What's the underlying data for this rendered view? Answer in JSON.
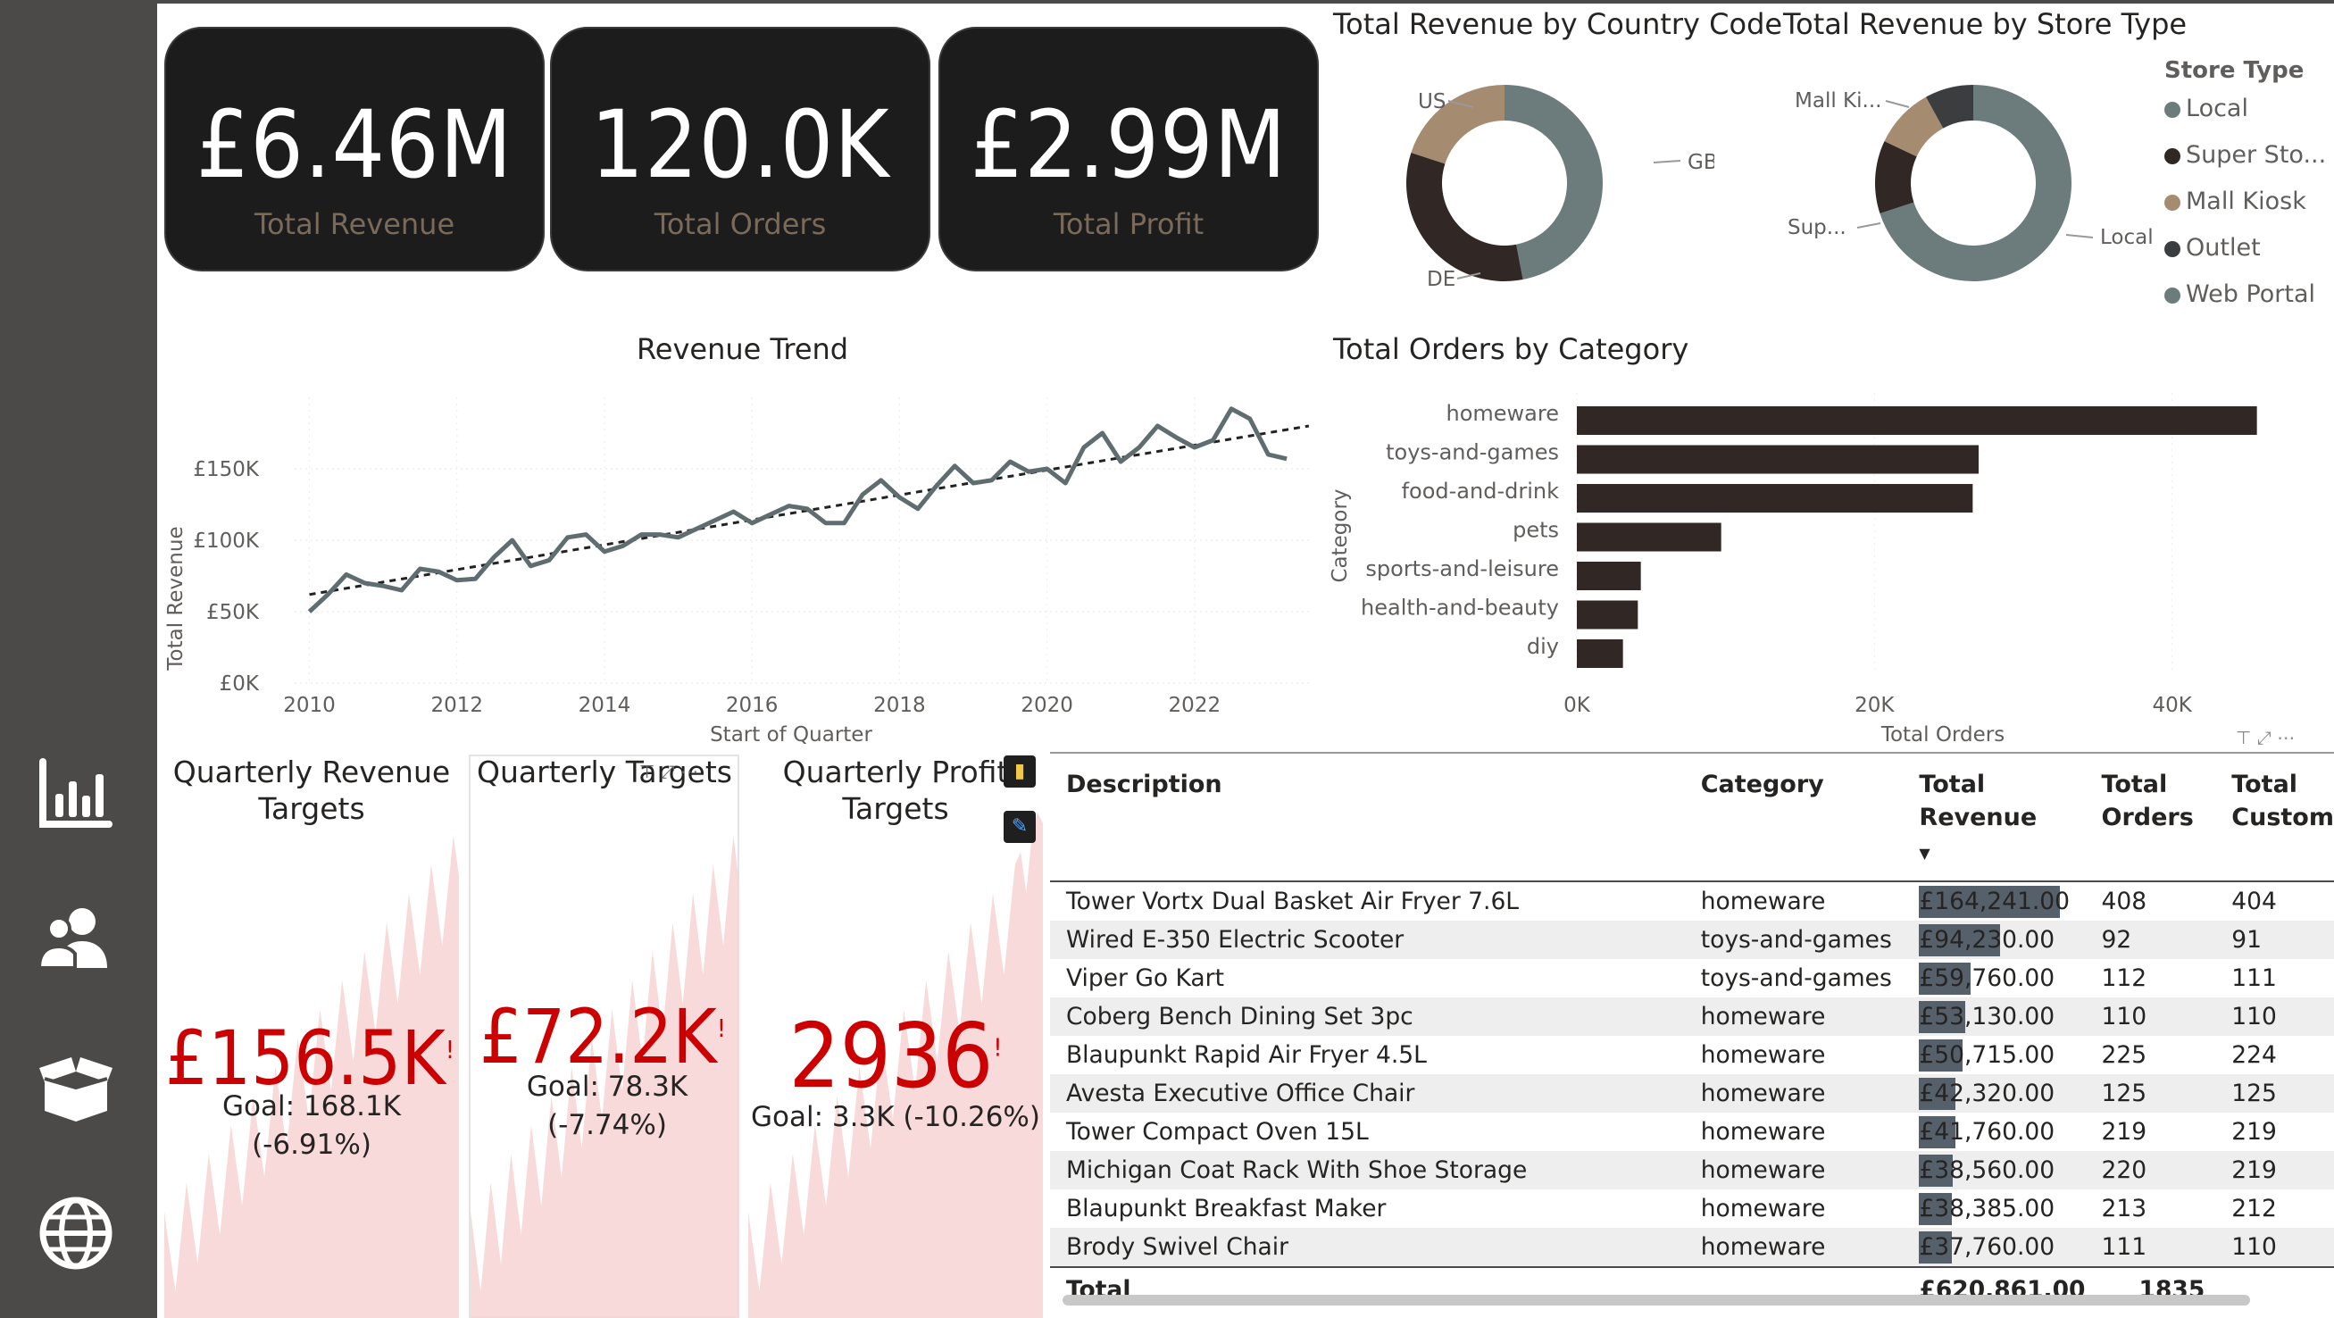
{
  "colors": {
    "dark": "#312826",
    "grey": "#6c7b7b",
    "tan": "#a58c70",
    "darkgrey": "#3b3d3f",
    "sidebar": "#4b4a48",
    "kpi_red": "#cc0000",
    "area": "#f5d2d2"
  },
  "sidebar": {
    "items": [
      {
        "icon": "bar-chart-icon"
      },
      {
        "icon": "users-icon"
      },
      {
        "icon": "open-box-icon"
      },
      {
        "icon": "globe-icon"
      }
    ]
  },
  "cards": [
    {
      "value": "£6.46M",
      "label": "Total Revenue"
    },
    {
      "value": "120.0K",
      "label": "Total Orders"
    },
    {
      "value": "£2.99M",
      "label": "Total Profit"
    }
  ],
  "country_chart": {
    "title": "Total Revenue by Country Code",
    "labels": [
      "US",
      "GB",
      "DE"
    ],
    "chart_data": {
      "type": "pie",
      "categories": [
        "GB",
        "DE",
        "US"
      ],
      "values": [
        0.47,
        0.33,
        0.2
      ]
    }
  },
  "store_chart": {
    "title": "Total Revenue by Store Type",
    "legend_title": "Store Type",
    "legend": [
      "Local",
      "Super Sto...",
      "Mall Kiosk",
      "Outlet",
      "Web Portal"
    ],
    "labels": [
      "Mall Ki...",
      "Sup...",
      "Local"
    ],
    "chart_data": {
      "type": "pie",
      "categories": [
        "Local",
        "Super Stores",
        "Mall Kiosk",
        "Outlet",
        "Web Portal"
      ],
      "values": [
        0.7,
        0.12,
        0.1,
        0.08,
        0.0
      ]
    }
  },
  "revenue_trend": {
    "title": "Revenue Trend",
    "xlabel": "Start of Quarter",
    "ylabel": "Total Revenue",
    "yticks": [
      "£0K",
      "£50K",
      "£100K",
      "£150K"
    ],
    "xticks": [
      "2010",
      "2012",
      "2014",
      "2016",
      "2018",
      "2020",
      "2022"
    ],
    "chart_data": {
      "type": "line",
      "x_start": 2010,
      "x_step": 0.25,
      "ylim": [
        0,
        200
      ],
      "values": [
        50,
        62,
        76,
        70,
        68,
        65,
        80,
        78,
        72,
        73,
        88,
        100,
        82,
        86,
        102,
        104,
        92,
        96,
        104,
        104,
        102,
        108,
        114,
        120,
        112,
        118,
        124,
        122,
        112,
        112,
        132,
        142,
        130,
        122,
        138,
        152,
        140,
        142,
        155,
        148,
        150,
        140,
        165,
        175,
        155,
        165,
        180,
        172,
        165,
        170,
        192,
        185,
        160,
        157
      ],
      "trend": [
        62,
        180
      ]
    }
  },
  "orders_category": {
    "title": "Total Orders by Category",
    "xlabel": "Total Orders",
    "ylabel": "Category",
    "xticks": [
      "0K",
      "20K",
      "40K"
    ],
    "chart_data": {
      "type": "bar",
      "categories": [
        "homeware",
        "toys-and-games",
        "food-and-drink",
        "pets",
        "sports-and-leisure",
        "health-and-beauty",
        "diy"
      ],
      "values": [
        45700,
        27000,
        26600,
        9700,
        4300,
        4100,
        3100
      ],
      "xlim": [
        0,
        48000
      ]
    }
  },
  "kpis": [
    {
      "title": "Quarterly Revenue Targets",
      "value": "£156.5K",
      "goal": "Goal: 168.1K (-6.91%)",
      "flag": "!"
    },
    {
      "title": "Quarterly Targets",
      "value": "£72.2K",
      "goal": "Goal: 78.3K (-7.74%)",
      "flag": "!"
    },
    {
      "title": "Quarterly Profit Targets",
      "value": "2936",
      "goal": "Goal: 3.3K (-10.26%)",
      "flag": "!"
    }
  ],
  "table": {
    "headers": [
      "Description",
      "Category",
      "Total Revenue",
      "Total Orders",
      "Total Custom"
    ],
    "rows": [
      {
        "desc": "Tower Vortx Dual Basket Air Fryer 7.6L",
        "cat": "homeware",
        "rev": "£164,241.00",
        "rev_n": 164241,
        "orders": "408",
        "cust": "404"
      },
      {
        "desc": "Wired E-350 Electric Scooter",
        "cat": "toys-and-games",
        "rev": "£94,230.00",
        "rev_n": 94230,
        "orders": "92",
        "cust": "91"
      },
      {
        "desc": "Viper Go Kart",
        "cat": "toys-and-games",
        "rev": "£59,760.00",
        "rev_n": 59760,
        "orders": "112",
        "cust": "111"
      },
      {
        "desc": "Coberg Bench Dining Set 3pc",
        "cat": "homeware",
        "rev": "£53,130.00",
        "rev_n": 53130,
        "orders": "110",
        "cust": "110"
      },
      {
        "desc": "Blaupunkt Rapid Air Fryer 4.5L",
        "cat": "homeware",
        "rev": "£50,715.00",
        "rev_n": 50715,
        "orders": "225",
        "cust": "224"
      },
      {
        "desc": "Avesta Executive Office Chair",
        "cat": "homeware",
        "rev": "£42,320.00",
        "rev_n": 42320,
        "orders": "125",
        "cust": "125"
      },
      {
        "desc": "Tower Compact Oven 15L",
        "cat": "homeware",
        "rev": "£41,760.00",
        "rev_n": 41760,
        "orders": "219",
        "cust": "219"
      },
      {
        "desc": "Michigan Coat Rack With Shoe Storage",
        "cat": "homeware",
        "rev": "£38,560.00",
        "rev_n": 38560,
        "orders": "220",
        "cust": "219"
      },
      {
        "desc": "Blaupunkt Breakfast Maker",
        "cat": "homeware",
        "rev": "£38,385.00",
        "rev_n": 38385,
        "orders": "213",
        "cust": "212"
      },
      {
        "desc": "Brody Swivel Chair",
        "cat": "homeware",
        "rev": "£37,760.00",
        "rev_n": 37760,
        "orders": "111",
        "cust": "110"
      }
    ],
    "total": {
      "label": "Total",
      "rev": "£620,861.00",
      "orders": "1835"
    }
  }
}
